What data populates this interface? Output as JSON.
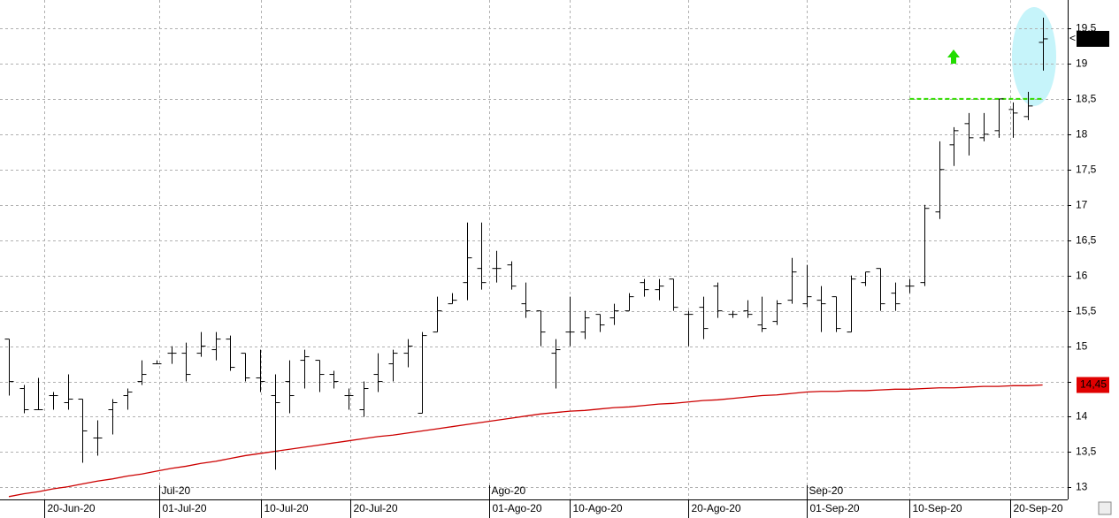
{
  "chart_data": {
    "type": "ohlc",
    "ylim": [
      12.83,
      19.9
    ],
    "yticks": [
      13,
      {
        "value": 13.5,
        "label": "13,5"
      },
      14,
      {
        "value": 14.5,
        "label": "14,5"
      },
      15,
      {
        "value": 15.5,
        "label": "15,5"
      },
      16,
      {
        "value": 16.5,
        "label": "16,5"
      },
      17,
      {
        "value": 17.5,
        "label": "17,5"
      },
      18,
      {
        "value": 18.5,
        "label": "18,5"
      },
      19,
      {
        "value": 19.5,
        "label": "19,5"
      }
    ],
    "xlim": [
      -0.6,
      71.7
    ],
    "xticks": [
      {
        "value": 2.4,
        "label": "20-Jun-20"
      },
      {
        "value": 10.2,
        "label": "01-Jul-20"
      },
      {
        "value": 17.1,
        "label": "10-Jul-20"
      },
      {
        "value": 23.1,
        "label": "20-Jul-20"
      },
      {
        "value": 32.5,
        "label": "01-Ago-20"
      },
      {
        "value": 38.0,
        "label": "10-Ago-20"
      },
      {
        "value": 46.0,
        "label": "20-Ago-20"
      },
      {
        "value": 54.0,
        "label": "01-Sep-20"
      },
      {
        "value": 61.0,
        "label": "10-Sep-20"
      },
      {
        "value": 67.8,
        "label": "20-Sep-20"
      }
    ],
    "month_ticks": [
      {
        "value": 10.2,
        "label": "Jul-20"
      },
      {
        "value": 32.5,
        "label": "Ago-20"
      },
      {
        "value": 54.0,
        "label": "Sep-20"
      }
    ],
    "grid": true,
    "color": "#000000",
    "open": [
      15.1,
      14.4,
      14.1,
      14.3,
      14.2,
      14.25,
      13.7,
      14.1,
      14.3,
      14.5,
      14.75,
      14.9,
      14.9,
      14.9,
      14.95,
      15.1,
      14.9,
      14.55,
      14.3,
      14.5,
      14.8,
      14.8,
      14.6,
      14.3,
      14.1,
      14.6,
      14.75,
      14.9,
      14.05,
      15.2,
      15.6,
      15.9,
      16.1,
      16.1,
      16.15,
      15.6,
      15.5,
      14.9,
      15.2,
      15.2,
      15.45,
      15.4,
      15.5,
      15.9,
      15.8,
      15.95,
      15.45,
      15.55,
      15.85,
      15.45,
      15.5,
      15.3,
      15.35,
      15.65,
      15.6,
      15.65,
      15.7,
      15.2,
      15.9,
      16.1,
      15.75,
      15.85,
      15.9,
      16.9,
      17.85,
      18.15,
      17.95,
      18.05,
      18.35,
      18.25,
      19.3
    ],
    "high": [
      15.1,
      14.45,
      14.55,
      14.35,
      14.6,
      14.25,
      13.95,
      14.25,
      14.4,
      14.8,
      14.8,
      15.0,
      15.05,
      15.2,
      15.2,
      15.15,
      14.9,
      14.95,
      14.6,
      14.8,
      14.95,
      14.8,
      14.65,
      14.4,
      14.5,
      14.9,
      14.95,
      15.1,
      15.2,
      15.7,
      15.75,
      16.75,
      16.75,
      16.35,
      16.2,
      15.9,
      15.5,
      15.1,
      15.7,
      15.5,
      15.45,
      15.6,
      15.75,
      15.95,
      15.95,
      15.95,
      15.5,
      15.7,
      15.9,
      15.5,
      15.65,
      15.7,
      15.65,
      16.25,
      16.15,
      15.85,
      15.7,
      16.0,
      16.05,
      16.1,
      15.9,
      15.95,
      17.0,
      17.9,
      18.1,
      18.3,
      18.3,
      18.5,
      18.45,
      18.6,
      19.65
    ],
    "low": [
      14.3,
      14.05,
      14.1,
      14.1,
      14.1,
      13.35,
      13.45,
      13.75,
      14.1,
      14.45,
      14.75,
      14.75,
      14.5,
      14.85,
      14.8,
      14.65,
      14.5,
      14.35,
      13.25,
      14.05,
      14.4,
      14.35,
      14.4,
      14.1,
      14.0,
      14.35,
      14.5,
      14.7,
      14.05,
      15.2,
      15.6,
      15.65,
      15.8,
      15.9,
      15.8,
      15.4,
      15.0,
      14.4,
      15.0,
      15.1,
      15.2,
      15.3,
      15.5,
      15.7,
      15.65,
      15.5,
      15.0,
      15.1,
      15.4,
      15.4,
      15.4,
      15.2,
      15.3,
      15.6,
      15.55,
      15.2,
      15.2,
      15.2,
      15.85,
      15.5,
      15.5,
      15.75,
      15.85,
      16.8,
      17.55,
      17.7,
      17.9,
      17.95,
      17.95,
      18.2,
      18.9
    ],
    "close": [
      14.5,
      14.1,
      14.1,
      14.3,
      14.25,
      13.8,
      13.7,
      14.2,
      14.35,
      14.6,
      14.75,
      14.9,
      14.6,
      15.0,
      15.1,
      14.7,
      14.55,
      14.5,
      14.2,
      14.3,
      14.85,
      14.6,
      14.5,
      14.3,
      14.4,
      14.5,
      14.9,
      15.0,
      15.15,
      15.5,
      15.65,
      16.25,
      15.9,
      16.1,
      15.85,
      15.5,
      15.2,
      14.95,
      15.2,
      15.4,
      15.3,
      15.5,
      15.7,
      15.8,
      15.85,
      15.55,
      15.45,
      15.25,
      15.5,
      15.45,
      15.45,
      15.25,
      15.6,
      16.05,
      15.7,
      15.6,
      15.25,
      15.95,
      16.05,
      15.6,
      15.6,
      15.85,
      16.95,
      17.5,
      18.05,
      17.95,
      18.0,
      18.5,
      18.3,
      18.4,
      19.35
    ],
    "moving_average": {
      "color": "#cc0000",
      "values": [
        12.87,
        12.91,
        12.94,
        12.98,
        13.01,
        13.05,
        13.09,
        13.12,
        13.16,
        13.19,
        13.23,
        13.27,
        13.3,
        13.34,
        13.37,
        13.41,
        13.45,
        13.48,
        13.51,
        13.54,
        13.57,
        13.6,
        13.63,
        13.66,
        13.69,
        13.72,
        13.74,
        13.77,
        13.8,
        13.83,
        13.86,
        13.89,
        13.92,
        13.95,
        13.98,
        14.01,
        14.04,
        14.06,
        14.08,
        14.09,
        14.11,
        14.13,
        14.14,
        14.16,
        14.18,
        14.19,
        14.21,
        14.23,
        14.24,
        14.26,
        14.28,
        14.3,
        14.31,
        14.33,
        14.35,
        14.36,
        14.36,
        14.37,
        14.37,
        14.38,
        14.39,
        14.39,
        14.4,
        14.41,
        14.41,
        14.42,
        14.43,
        14.43,
        14.44,
        14.44,
        14.45
      ],
      "last": {
        "value": 14.45,
        "label": "14,45"
      }
    },
    "level": {
      "value": 18.5,
      "color": "#33dd00"
    }
  }
}
